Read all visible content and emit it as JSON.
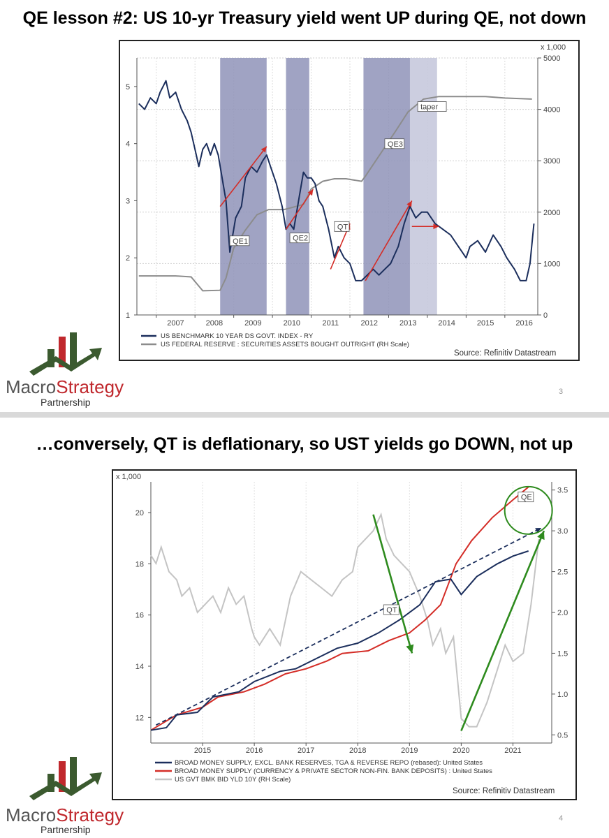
{
  "slides": [
    {
      "title": "QE lesson #2: US 10-yr Treasury yield went UP during QE, not down",
      "page_number": "3",
      "source": "Source: Refinitiv Datastream",
      "right_axis_unit": "x 1,000"
    },
    {
      "title": "…conversely, QT is deflationary, so UST yields go DOWN, not up",
      "page_number": "4",
      "source": "Source: Refinitiv Datastream",
      "left_axis_unit": "x 1,000"
    }
  ],
  "logo": {
    "name_part1": "Macro",
    "name_part2": "Strategy",
    "sub": "Partnership"
  },
  "colors": {
    "navy": "#1b2e5c",
    "red": "#d42d27",
    "gray": "#8c8c8c",
    "lightgray": "#c4c4c4",
    "qe_band": "#8f93b8",
    "taper_band": "#c3c6db",
    "green": "#2e8b1e",
    "logo_green": "#3b5a2f",
    "logo_red": "#c0282d"
  },
  "chart_data": [
    {
      "type": "line",
      "x_ticks": [
        "2007",
        "2008",
        "2009",
        "2010",
        "2011",
        "2012",
        "2013",
        "2014",
        "2015",
        "2016"
      ],
      "y_left_ticks": [
        "1",
        "2",
        "3",
        "4",
        "5"
      ],
      "y_left_range": [
        1,
        5.5
      ],
      "y_right_ticks": [
        "0",
        "1000",
        "2000",
        "3000",
        "4000",
        "5000"
      ],
      "y_right_range": [
        0,
        5000
      ],
      "legend": [
        "US BENCHMARK 10 YEAR DS GOVT. INDEX - RY",
        "US FEDERAL RESERVE : SECURITIES ASSETS BOUGHT OUTRIGHT (RH Scale)"
      ],
      "shaded_periods": [
        {
          "label": "QE1",
          "start": 2008.65,
          "end": 2009.85
        },
        {
          "label": "QE2",
          "start": 2010.35,
          "end": 2010.95
        },
        {
          "label": "QE3",
          "start": 2012.35,
          "end": 2013.55
        },
        {
          "label": "taper",
          "start": 2013.55,
          "end": 2014.25
        }
      ],
      "annotations": [
        "QE1",
        "QE2",
        "QT",
        "QE3",
        "taper"
      ],
      "series": [
        {
          "name": "US BENCHMARK 10 YEAR DS GOVT. INDEX - RY",
          "axis": "left",
          "x": [
            2006.55,
            2006.7,
            2006.85,
            2007.0,
            2007.1,
            2007.25,
            2007.35,
            2007.5,
            2007.65,
            2007.8,
            2007.9,
            2008.0,
            2008.1,
            2008.2,
            2008.3,
            2008.4,
            2008.5,
            2008.6,
            2008.7,
            2008.8,
            2008.9,
            2008.95,
            2009.05,
            2009.2,
            2009.3,
            2009.45,
            2009.6,
            2009.75,
            2009.85,
            2009.95,
            2010.1,
            2010.25,
            2010.35,
            2010.45,
            2010.55,
            2010.7,
            2010.8,
            2010.9,
            2011.0,
            2011.1,
            2011.2,
            2011.3,
            2011.45,
            2011.6,
            2011.7,
            2011.85,
            2012.0,
            2012.15,
            2012.3,
            2012.45,
            2012.6,
            2012.75,
            2012.9,
            2013.05,
            2013.25,
            2013.4,
            2013.55,
            2013.7,
            2013.85,
            2014.0,
            2014.2,
            2014.4,
            2014.6,
            2014.8,
            2015.0,
            2015.1,
            2015.3,
            2015.5,
            2015.7,
            2015.9,
            2016.05,
            2016.25,
            2016.4,
            2016.55,
            2016.65,
            2016.75
          ],
          "y": [
            4.7,
            4.6,
            4.8,
            4.7,
            4.9,
            5.1,
            4.8,
            4.9,
            4.6,
            4.4,
            4.2,
            3.9,
            3.6,
            3.9,
            4.0,
            3.8,
            4.0,
            3.8,
            3.4,
            3.0,
            2.1,
            2.3,
            2.7,
            2.9,
            3.4,
            3.6,
            3.5,
            3.7,
            3.8,
            3.6,
            3.3,
            2.9,
            2.5,
            2.6,
            2.5,
            3.1,
            3.5,
            3.4,
            3.4,
            3.3,
            3.0,
            2.9,
            2.5,
            2.0,
            2.2,
            2.0,
            1.9,
            1.6,
            1.6,
            1.7,
            1.8,
            1.7,
            1.8,
            1.9,
            2.2,
            2.6,
            2.9,
            2.7,
            2.8,
            2.8,
            2.6,
            2.5,
            2.4,
            2.2,
            2.0,
            2.2,
            2.3,
            2.1,
            2.4,
            2.2,
            2.0,
            1.8,
            1.6,
            1.6,
            1.9,
            2.6
          ]
        },
        {
          "name": "US FEDERAL RESERVE : SECURITIES ASSETS BOUGHT OUTRIGHT (RH Scale)",
          "axis": "right",
          "x": [
            2006.55,
            2007.5,
            2007.9,
            2008.2,
            2008.65,
            2008.8,
            2009.0,
            2009.3,
            2009.6,
            2009.9,
            2010.3,
            2010.8,
            2011.0,
            2011.3,
            2011.6,
            2011.9,
            2012.3,
            2012.4,
            2012.8,
            2013.2,
            2013.5,
            2013.9,
            2014.3,
            2014.8,
            2015.5,
            2016.0,
            2016.7
          ],
          "y": [
            760,
            760,
            740,
            470,
            480,
            720,
            1300,
            1650,
            1950,
            2050,
            2050,
            2150,
            2450,
            2600,
            2650,
            2650,
            2600,
            2700,
            3150,
            3600,
            3950,
            4200,
            4250,
            4250,
            4250,
            4220,
            4200
          ]
        }
      ]
    },
    {
      "type": "line",
      "x_ticks": [
        "2015",
        "2016",
        "2017",
        "2018",
        "2019",
        "2020",
        "2021"
      ],
      "y_left_ticks": [
        "12",
        "14",
        "16",
        "18",
        "20"
      ],
      "y_left_range": [
        11,
        21.2
      ],
      "y_right_ticks": [
        "0.5",
        "1.0",
        "1.5",
        "2.0",
        "2.5",
        "3.0",
        "3.5"
      ],
      "y_right_range": [
        0.4,
        3.6
      ],
      "legend": [
        "BROAD MONEY SUPPLY, EXCL. BANK RESERVES, TGA & REVERSE REPO (rebased): United States",
        "BROAD MONEY SUPPLY (CURRENCY & PRIVATE SECTOR NON-FIN. BANK DEPOSITS) : United States",
        "US GVT BMK BID YLD 10Y (RH Scale)"
      ],
      "annotations": [
        "QT",
        "QE"
      ],
      "series": [
        {
          "name": "BROAD MONEY SUPPLY, EXCL. BANK RESERVES, TGA & REVERSE REPO (rebased): United States",
          "axis": "left",
          "x": [
            2014.0,
            2014.3,
            2014.5,
            2014.9,
            2015.2,
            2015.7,
            2016.0,
            2016.5,
            2016.8,
            2017.2,
            2017.6,
            2018.0,
            2018.4,
            2018.8,
            2019.2,
            2019.5,
            2019.8,
            2020.0,
            2020.3,
            2020.7,
            2021.0,
            2021.3
          ],
          "y": [
            11.5,
            11.6,
            12.1,
            12.2,
            12.8,
            13.0,
            13.4,
            13.8,
            13.9,
            14.3,
            14.7,
            14.9,
            15.3,
            15.8,
            16.4,
            17.3,
            17.4,
            16.8,
            17.5,
            18.0,
            18.3,
            18.5
          ]
        },
        {
          "name": "BROAD MONEY SUPPLY (CURRENCY & PRIVATE SECTOR NON-FIN. BANK DEPOSITS) : United States",
          "axis": "left",
          "x": [
            2014.0,
            2014.5,
            2015.0,
            2015.3,
            2015.8,
            2016.2,
            2016.6,
            2017.0,
            2017.4,
            2017.7,
            2018.2,
            2018.6,
            2019.0,
            2019.3,
            2019.6,
            2019.9,
            2020.2,
            2020.6,
            2021.0,
            2021.3
          ],
          "y": [
            11.5,
            12.1,
            12.4,
            12.8,
            13.0,
            13.3,
            13.7,
            13.9,
            14.2,
            14.5,
            14.6,
            15.0,
            15.3,
            15.8,
            16.4,
            18.0,
            18.9,
            19.8,
            20.5,
            21.0
          ]
        },
        {
          "name": "US GVT BMK BID YLD 10Y (RH Scale)",
          "axis": "right",
          "x": [
            2014.0,
            2014.1,
            2014.2,
            2014.35,
            2014.5,
            2014.6,
            2014.75,
            2014.9,
            2015.05,
            2015.2,
            2015.35,
            2015.5,
            2015.65,
            2015.8,
            2015.95,
            2016.0,
            2016.1,
            2016.3,
            2016.5,
            2016.7,
            2016.9,
            2017.1,
            2017.3,
            2017.5,
            2017.7,
            2017.9,
            2018.0,
            2018.15,
            2018.3,
            2018.45,
            2018.55,
            2018.7,
            2018.85,
            2019.0,
            2019.2,
            2019.35,
            2019.45,
            2019.6,
            2019.7,
            2019.85,
            2020.0,
            2020.15,
            2020.3,
            2020.5,
            2020.7,
            2020.85,
            2021.0,
            2021.2,
            2021.35,
            2021.5
          ],
          "y": [
            2.7,
            2.6,
            2.8,
            2.5,
            2.4,
            2.2,
            2.3,
            2.0,
            2.1,
            2.2,
            2.0,
            2.3,
            2.1,
            2.2,
            1.8,
            1.7,
            1.6,
            1.8,
            1.6,
            2.2,
            2.5,
            2.4,
            2.3,
            2.2,
            2.4,
            2.5,
            2.8,
            2.9,
            3.0,
            3.2,
            2.9,
            2.7,
            2.6,
            2.5,
            2.2,
            1.9,
            1.6,
            1.8,
            1.5,
            1.7,
            0.7,
            0.6,
            0.6,
            0.9,
            1.3,
            1.6,
            1.4,
            1.5,
            2.1,
            2.9
          ]
        }
      ]
    }
  ]
}
